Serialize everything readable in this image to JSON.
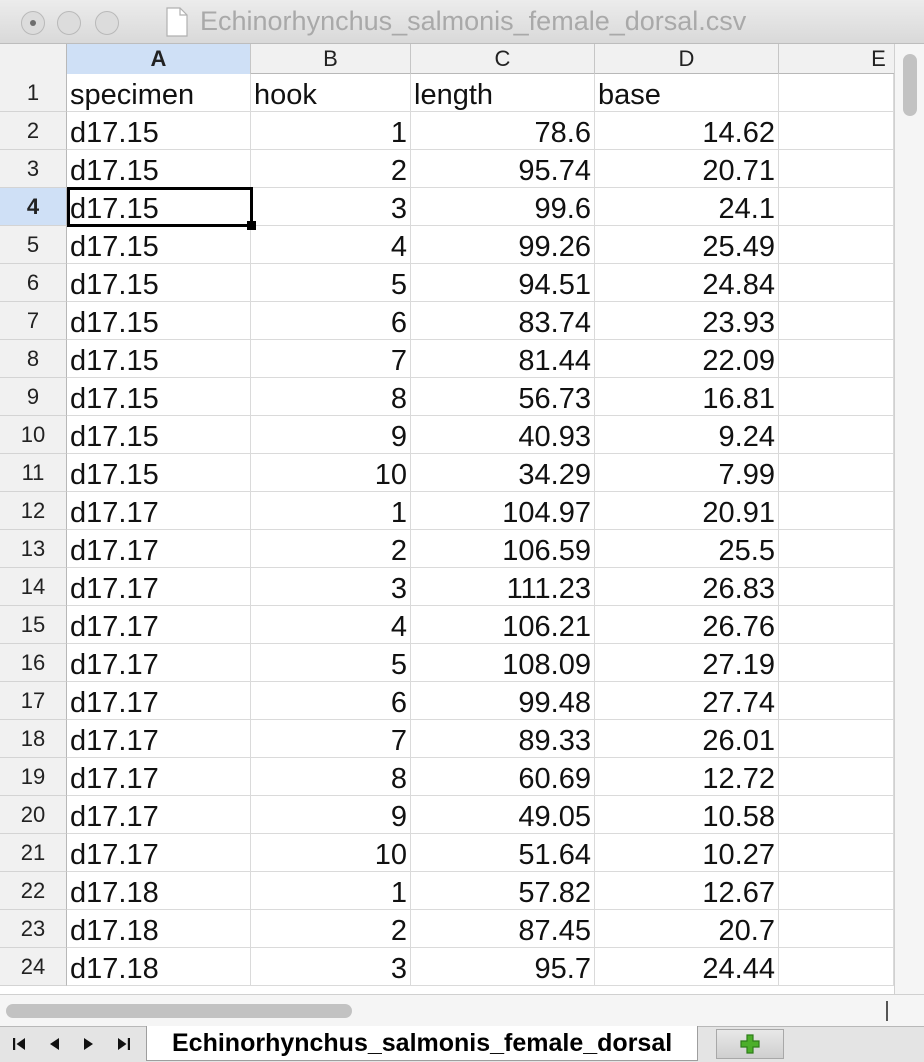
{
  "window": {
    "title": "Echinorhynchus_salmonis_female_dorsal.csv"
  },
  "columns": [
    "A",
    "B",
    "C",
    "D",
    "E"
  ],
  "header_row": {
    "row": "1",
    "cells": [
      "specimen",
      "hook",
      "length",
      "base"
    ]
  },
  "rows": [
    {
      "row": "2",
      "cells": [
        "d17.15",
        "1",
        "78.6",
        "14.62"
      ]
    },
    {
      "row": "3",
      "cells": [
        "d17.15",
        "2",
        "95.74",
        "20.71"
      ]
    },
    {
      "row": "4",
      "cells": [
        "d17.15",
        "3",
        "99.6",
        "24.1"
      ]
    },
    {
      "row": "5",
      "cells": [
        "d17.15",
        "4",
        "99.26",
        "25.49"
      ]
    },
    {
      "row": "6",
      "cells": [
        "d17.15",
        "5",
        "94.51",
        "24.84"
      ]
    },
    {
      "row": "7",
      "cells": [
        "d17.15",
        "6",
        "83.74",
        "23.93"
      ]
    },
    {
      "row": "8",
      "cells": [
        "d17.15",
        "7",
        "81.44",
        "22.09"
      ]
    },
    {
      "row": "9",
      "cells": [
        "d17.15",
        "8",
        "56.73",
        "16.81"
      ]
    },
    {
      "row": "10",
      "cells": [
        "d17.15",
        "9",
        "40.93",
        "9.24"
      ]
    },
    {
      "row": "11",
      "cells": [
        "d17.15",
        "10",
        "34.29",
        "7.99"
      ]
    },
    {
      "row": "12",
      "cells": [
        "d17.17",
        "1",
        "104.97",
        "20.91"
      ]
    },
    {
      "row": "13",
      "cells": [
        "d17.17",
        "2",
        "106.59",
        "25.5"
      ]
    },
    {
      "row": "14",
      "cells": [
        "d17.17",
        "3",
        "111.23",
        "26.83"
      ]
    },
    {
      "row": "15",
      "cells": [
        "d17.17",
        "4",
        "106.21",
        "26.76"
      ]
    },
    {
      "row": "16",
      "cells": [
        "d17.17",
        "5",
        "108.09",
        "27.19"
      ]
    },
    {
      "row": "17",
      "cells": [
        "d17.17",
        "6",
        "99.48",
        "27.74"
      ]
    },
    {
      "row": "18",
      "cells": [
        "d17.17",
        "7",
        "89.33",
        "26.01"
      ]
    },
    {
      "row": "19",
      "cells": [
        "d17.17",
        "8",
        "60.69",
        "12.72"
      ]
    },
    {
      "row": "20",
      "cells": [
        "d17.17",
        "9",
        "49.05",
        "10.58"
      ]
    },
    {
      "row": "21",
      "cells": [
        "d17.17",
        "10",
        "51.64",
        "10.27"
      ]
    },
    {
      "row": "22",
      "cells": [
        "d17.18",
        "1",
        "57.82",
        "12.67"
      ]
    },
    {
      "row": "23",
      "cells": [
        "d17.18",
        "2",
        "87.45",
        "20.7"
      ]
    },
    {
      "row": "24",
      "cells": [
        "d17.18",
        "3",
        "95.7",
        "24.44"
      ]
    }
  ],
  "selection": {
    "column": "A",
    "row": "4"
  },
  "sheet_tabs": [
    {
      "label": "Echinorhynchus_salmonis_female_dorsal",
      "active": true
    }
  ],
  "icons": {
    "nav_first": "first-sheet-icon",
    "nav_prev": "prev-sheet-icon",
    "nav_next": "next-sheet-icon",
    "nav_last": "last-sheet-icon",
    "add_sheet": "plus-icon",
    "document": "document-icon"
  },
  "colors": {
    "selection_header": "#cfe0f6",
    "add_sheet_plus": "#4caf2a"
  }
}
